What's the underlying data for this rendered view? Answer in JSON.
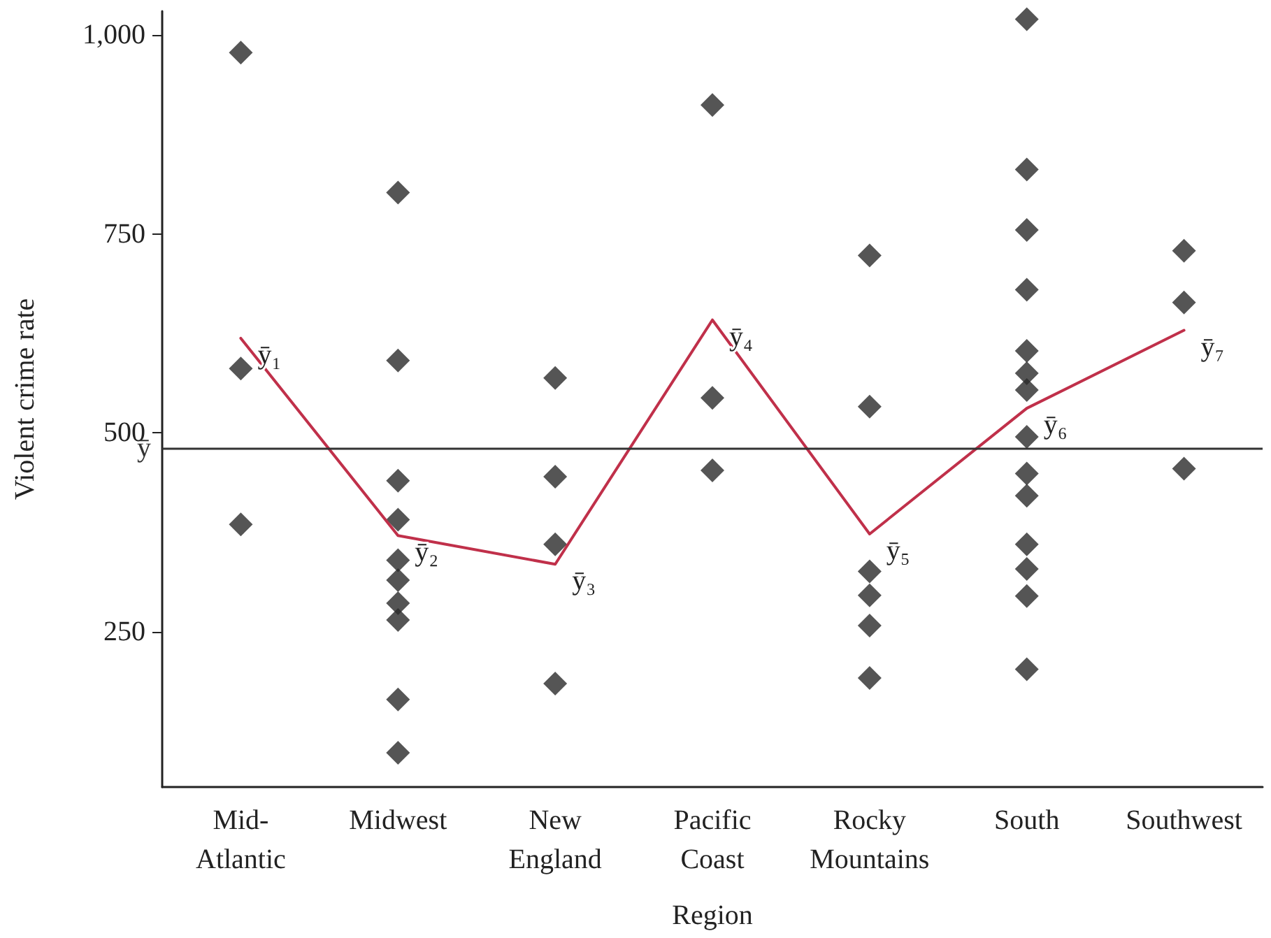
{
  "chart_data": {
    "type": "scatter",
    "xlabel": "Region",
    "ylabel": "Violent crime rate",
    "categories": [
      "Mid-Atlantic",
      "Midwest",
      "New England",
      "Pacific Coast",
      "Rocky Mountains",
      "South",
      "Southwest"
    ],
    "ylim": [
      55,
      1030
    ],
    "yticks": [
      {
        "value": 250,
        "label": "250"
      },
      {
        "value": 500,
        "label": "500"
      },
      {
        "value": 750,
        "label": "750"
      },
      {
        "value": 1000,
        "label": "1,000"
      }
    ],
    "grid": false,
    "series": [
      {
        "type": "scatter",
        "color": "#2b2b2b",
        "marker": "diamond",
        "x": [
          "Mid-Atlantic",
          "Mid-Atlantic",
          "Mid-Atlantic",
          "Midwest",
          "Midwest",
          "Midwest",
          "Midwest",
          "Midwest",
          "Midwest",
          "Midwest",
          "Midwest",
          "Midwest",
          "Midwest",
          "New England",
          "New England",
          "New England",
          "New England",
          "Pacific Coast",
          "Pacific Coast",
          "Pacific Coast",
          "Rocky Mountains",
          "Rocky Mountains",
          "Rocky Mountains",
          "Rocky Mountains",
          "Rocky Mountains",
          "Rocky Mountains",
          "South",
          "South",
          "South",
          "South",
          "South",
          "South",
          "South",
          "South",
          "South",
          "South",
          "South",
          "South",
          "South",
          "South",
          "Southwest",
          "Southwest",
          "Southwest"
        ],
        "values": [
          978,
          581,
          385,
          802,
          591,
          440,
          391,
          340,
          315,
          286,
          265,
          165,
          98,
          569,
          445,
          360,
          185,
          912,
          544,
          453,
          723,
          533,
          326,
          296,
          258,
          192,
          1020,
          831,
          755,
          680,
          603,
          575,
          554,
          495,
          449,
          421,
          360,
          329,
          295,
          203,
          729,
          664,
          455
        ]
      },
      {
        "type": "line",
        "color": "#c0304a",
        "marker": "none",
        "line_style": "solid",
        "values": [
          619,
          371,
          335,
          642,
          373,
          531,
          629
        ]
      }
    ],
    "ref_lines": [
      {
        "axis": "y",
        "value": 481,
        "label": "ȳ",
        "color": "#333333",
        "line_style": "solid"
      }
    ],
    "annotations": [
      {
        "text": "ȳ₁",
        "x": "Mid-Atlantic",
        "y": 619
      },
      {
        "text": "ȳ₂",
        "x": "Midwest",
        "y": 371
      },
      {
        "text": "ȳ₃",
        "x": "New England",
        "y": 335
      },
      {
        "text": "ȳ₄",
        "x": "Pacific Coast",
        "y": 642
      },
      {
        "text": "ȳ₅",
        "x": "Rocky Mountains",
        "y": 373
      },
      {
        "text": "ȳ₆",
        "x": "South",
        "y": 531
      },
      {
        "text": "ȳ₇",
        "x": "Southwest",
        "y": 629
      }
    ]
  }
}
